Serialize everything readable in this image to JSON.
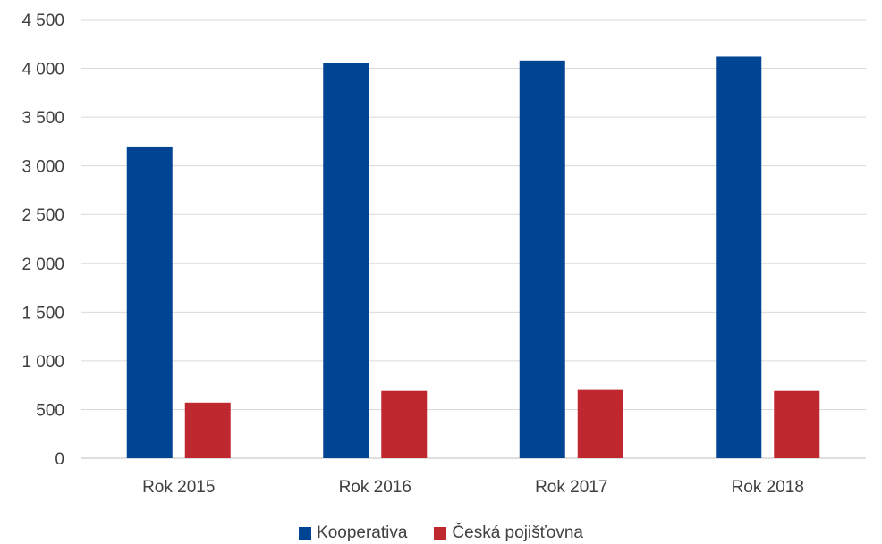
{
  "chart_data": {
    "type": "bar",
    "title": "",
    "xlabel": "",
    "ylabel": "",
    "categories": [
      "Rok 2015",
      "Rok 2016",
      "Rok 2017",
      "Rok 2018"
    ],
    "series": [
      {
        "name": "Kooperativa",
        "color": "#004494",
        "values": [
          3190,
          4060,
          4080,
          4120
        ]
      },
      {
        "name": "Česká pojišťovna",
        "color": "#C0282F",
        "values": [
          570,
          690,
          700,
          690
        ]
      }
    ],
    "ylim": [
      0,
      4500
    ],
    "yticks": [
      0,
      500,
      1000,
      1500,
      2000,
      2500,
      3000,
      3500,
      4000,
      4500
    ],
    "ytick_labels": [
      "0",
      "500",
      "1 000",
      "1 500",
      "2 000",
      "2 500",
      "3 000",
      "3 500",
      "4 000",
      "4 500"
    ],
    "grid": true,
    "legend": "bottom-center"
  }
}
